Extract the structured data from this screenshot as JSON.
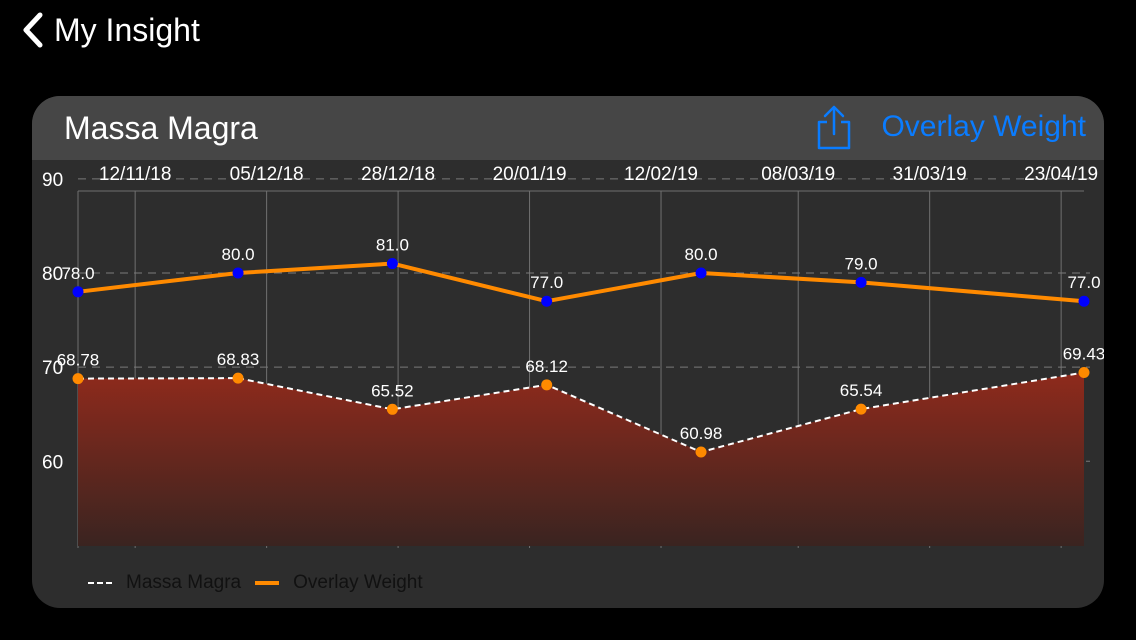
{
  "nav": {
    "back_label": "My Insight"
  },
  "card": {
    "title": "Massa Magra",
    "share_icon": "share-icon",
    "overlay_label": "Overlay Weight"
  },
  "colors": {
    "background": "#000000",
    "card": "#2d2d2d",
    "header": "#464646",
    "accent_blue": "#0a7cff",
    "overlay_line": "#ff8a00",
    "overlay_points": "#0000ff",
    "area_top": "#8f2a1c",
    "area_bottom": "#3a2420",
    "point_orange": "#ff8a00"
  },
  "chart_data": {
    "type": "line",
    "title": "Massa Magra",
    "x_tick_labels": [
      "12/11/18",
      "05/12/18",
      "28/12/18",
      "20/01/19",
      "12/02/19",
      "08/03/19",
      "31/03/19",
      "23/04/19"
    ],
    "x_tick_dates": [
      "2018-11-12",
      "2018-12-05",
      "2018-12-28",
      "2019-01-20",
      "2019-02-12",
      "2019-03-08",
      "2019-03-31",
      "2019-04-23"
    ],
    "xlim": [
      "2018-11-02",
      "2019-04-27"
    ],
    "ylim": [
      51,
      92
    ],
    "y_ticks": [
      60,
      70,
      80,
      90
    ],
    "grid": true,
    "legend_position": "bottom-left",
    "series": [
      {
        "name": "Massa Magra",
        "style": "dashed-area",
        "x": [
          "2018-11-02",
          "2018-11-30",
          "2018-12-27",
          "2019-01-23",
          "2019-02-19",
          "2019-03-19",
          "2019-04-27"
        ],
        "y": [
          68.78,
          68.83,
          65.52,
          68.12,
          60.98,
          65.54,
          69.43
        ],
        "labels": [
          "68.78",
          "68.83",
          "65.52",
          "68.12",
          "60.98",
          "65.54",
          "69.43"
        ]
      },
      {
        "name": "Overlay Weight",
        "style": "solid",
        "x": [
          "2018-11-02",
          "2018-11-30",
          "2018-12-27",
          "2019-01-23",
          "2019-02-19",
          "2019-03-19",
          "2019-04-27"
        ],
        "y": [
          78.0,
          80.0,
          81.0,
          77.0,
          80.0,
          79.0,
          77.0
        ],
        "labels": [
          "78.0",
          "80.0",
          "81.0",
          "77.0",
          "80.0",
          "79.0",
          "77.0"
        ]
      }
    ]
  }
}
